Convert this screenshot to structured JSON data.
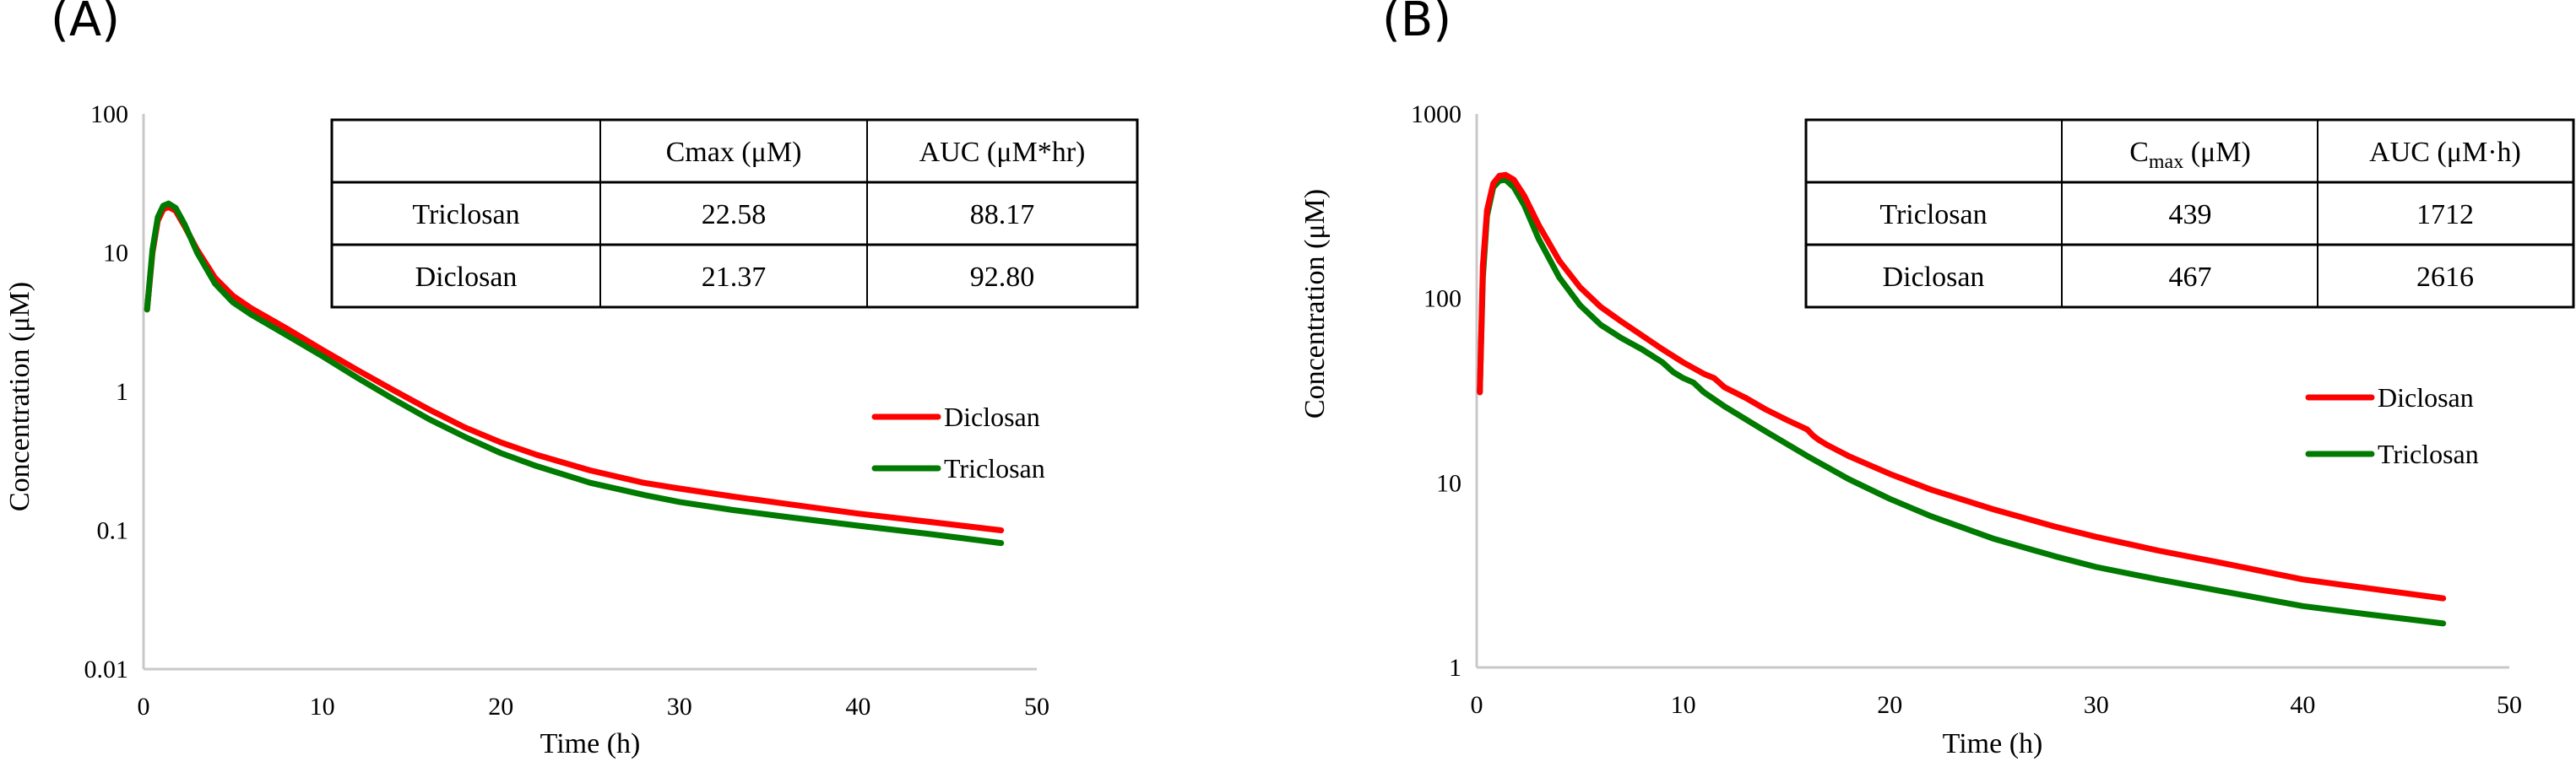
{
  "figure": {
    "panels": [
      "(A)",
      "(B)"
    ]
  },
  "chart_data": [
    {
      "panel": "(A)",
      "type": "line",
      "title": "",
      "xlabel": "Time (h)",
      "ylabel": "Concentration (μM)",
      "xscale": "linear",
      "yscale": "log",
      "xlim": [
        0,
        50
      ],
      "ylim": [
        0.01,
        100
      ],
      "xticks": [
        "0",
        "10",
        "20",
        "30",
        "40",
        "50"
      ],
      "yticks": [
        "0.01",
        "0.1",
        "1",
        "10",
        "100"
      ],
      "grid": false,
      "legend_position": "right",
      "series": [
        {
          "name": "Diclosan",
          "color": "#ff0000",
          "x": [
            0.2,
            0.5,
            0.8,
            1.1,
            1.4,
            1.8,
            2.3,
            3,
            4,
            5,
            6,
            8,
            10,
            12,
            14,
            16,
            18,
            20,
            22,
            25,
            28,
            30,
            33,
            36,
            40,
            44,
            48
          ],
          "y": [
            3.9,
            10,
            17,
            20.5,
            21.4,
            20,
            15.5,
            10.5,
            6.6,
            4.9,
            4.0,
            2.85,
            2.0,
            1.42,
            1.02,
            0.74,
            0.55,
            0.43,
            0.35,
            0.27,
            0.22,
            0.2,
            0.175,
            0.155,
            0.132,
            0.115,
            0.1
          ]
        },
        {
          "name": "Triclosan",
          "color": "#007a00",
          "x": [
            0.2,
            0.5,
            0.8,
            1.1,
            1.4,
            1.8,
            2.3,
            3,
            4,
            5,
            6,
            8,
            10,
            12,
            14,
            16,
            18,
            20,
            22,
            25,
            28,
            30,
            33,
            36,
            40,
            44,
            48
          ],
          "y": [
            3.9,
            10.5,
            18,
            21.8,
            22.6,
            21,
            16,
            10,
            6.0,
            4.4,
            3.6,
            2.55,
            1.8,
            1.25,
            0.88,
            0.63,
            0.47,
            0.36,
            0.29,
            0.22,
            0.18,
            0.16,
            0.14,
            0.125,
            0.108,
            0.094,
            0.081
          ]
        }
      ],
      "table": {
        "headers": [
          "",
          "Cmax (μM)",
          "AUC (μM*hr)"
        ],
        "rows": [
          [
            "Triclosan",
            "22.58",
            "88.17"
          ],
          [
            "Diclosan",
            "21.37",
            "92.80"
          ]
        ]
      }
    },
    {
      "panel": "(B)",
      "type": "line",
      "title": "",
      "xlabel": "Time (h)",
      "ylabel": "Concentration (μM)",
      "xscale": "linear",
      "yscale": "log",
      "xlim": [
        0,
        50
      ],
      "ylim": [
        1,
        1000
      ],
      "xticks": [
        "0",
        "10",
        "20",
        "30",
        "40",
        "50"
      ],
      "yticks": [
        "1",
        "10",
        "100",
        "1000"
      ],
      "grid": false,
      "legend_position": "right",
      "series": [
        {
          "name": "Diclosan",
          "color": "#ff0000",
          "x": [
            0.15,
            0.3,
            0.5,
            0.8,
            1.1,
            1.4,
            1.8,
            2.3,
            3,
            4,
            5,
            6,
            7,
            8,
            9,
            10,
            11,
            11.5,
            12,
            13,
            14,
            15,
            16,
            16.3,
            16.6,
            17,
            18,
            20,
            22,
            25,
            28,
            30,
            33,
            36,
            40,
            43,
            46.8
          ],
          "y": [
            31,
            150,
            300,
            420,
            462,
            467,
            440,
            360,
            250,
            160,
            115,
            90,
            75,
            63,
            53,
            45,
            39,
            37,
            33,
            29,
            25,
            22,
            19.5,
            18,
            17,
            16,
            14,
            11.2,
            9.2,
            7.2,
            5.8,
            5.1,
            4.3,
            3.7,
            3.0,
            2.7,
            2.37
          ]
        },
        {
          "name": "Triclosan",
          "color": "#007a00",
          "x": [
            0.15,
            0.3,
            0.5,
            0.8,
            1.1,
            1.4,
            1.8,
            2.3,
            3,
            4,
            5,
            6,
            7,
            8,
            9,
            9.5,
            10,
            10.5,
            11,
            12,
            14,
            16,
            18,
            20,
            22,
            25,
            28,
            30,
            33,
            36,
            40,
            43,
            46.8
          ],
          "y": [
            31,
            130,
            280,
            400,
            435,
            439,
            400,
            320,
            210,
            130,
            92,
            72,
            61,
            53,
            45,
            40,
            37,
            35,
            31,
            26,
            19,
            14,
            10.5,
            8.2,
            6.6,
            5.0,
            4.0,
            3.5,
            3.0,
            2.6,
            2.15,
            1.95,
            1.73
          ]
        }
      ],
      "table": {
        "headers": [
          "",
          "Cmax (μM)",
          "AUC (μM·h)"
        ],
        "header_parts": {
          "cmax_main": "C",
          "cmax_sub": "max",
          "cmax_unit": " (μM)"
        },
        "rows": [
          [
            "Triclosan",
            "439",
            "1712"
          ],
          [
            "Diclosan",
            "467",
            "2616"
          ]
        ]
      }
    }
  ]
}
